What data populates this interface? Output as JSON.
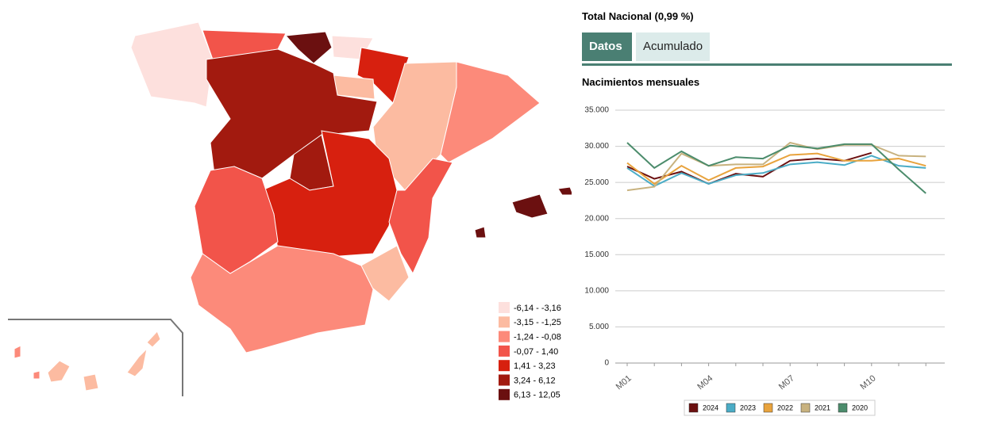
{
  "header": {
    "title": "Total Nacional (0,99 %)"
  },
  "tabs": [
    "Datos",
    "Acumulado"
  ],
  "map_legend": [
    "-6,14 - -3,16",
    "-3,15 - -1,25",
    "-1,24 - -0,08",
    "-0,07 - 1,40",
    "1,41 - 3,23",
    "3,24 - 6,12",
    "6,13 - 12,05"
  ],
  "chart_data": {
    "type": "line",
    "title": "Nacimientos mensuales",
    "categories": [
      "M01",
      null,
      null,
      "M04",
      null,
      null,
      "M07",
      null,
      null,
      "M10",
      null,
      null
    ],
    "ylim": [
      0,
      35000
    ],
    "yticks": [
      {
        "value": 0,
        "label": "0"
      },
      {
        "value": 5000,
        "label": "5.000"
      },
      {
        "value": 10000,
        "label": "10.000"
      },
      {
        "value": 15000,
        "label": "15.000"
      },
      {
        "value": 20000,
        "label": "20.000"
      },
      {
        "value": 25000,
        "label": "25.000"
      },
      {
        "value": 30000,
        "label": "30.000"
      },
      {
        "value": 35000,
        "label": "35.000"
      }
    ],
    "grid": true,
    "series": [
      {
        "name": "2024",
        "color": "#6b1010",
        "values": [
          27200,
          25500,
          26500,
          24800,
          26200,
          25800,
          28000,
          28300,
          28000,
          29100,
          null,
          null
        ]
      },
      {
        "name": "2023",
        "color": "#4bacc6",
        "values": [
          27000,
          24500,
          26300,
          24800,
          26000,
          26300,
          27500,
          27800,
          27400,
          28700,
          27300,
          27000
        ]
      },
      {
        "name": "2022",
        "color": "#e8a33d",
        "values": [
          27700,
          24800,
          27300,
          25300,
          27000,
          27200,
          28800,
          29000,
          28000,
          28000,
          28300,
          27300
        ]
      },
      {
        "name": "2021",
        "color": "#c8b27f",
        "values": [
          23900,
          24400,
          29000,
          27300,
          27500,
          27500,
          30500,
          29600,
          30200,
          30200,
          28700,
          28600
        ]
      },
      {
        "name": "2020",
        "color": "#4c8c6c",
        "values": [
          30500,
          27000,
          29300,
          27300,
          28500,
          28300,
          30100,
          29700,
          30300,
          30300,
          26800,
          23500
        ]
      }
    ]
  }
}
